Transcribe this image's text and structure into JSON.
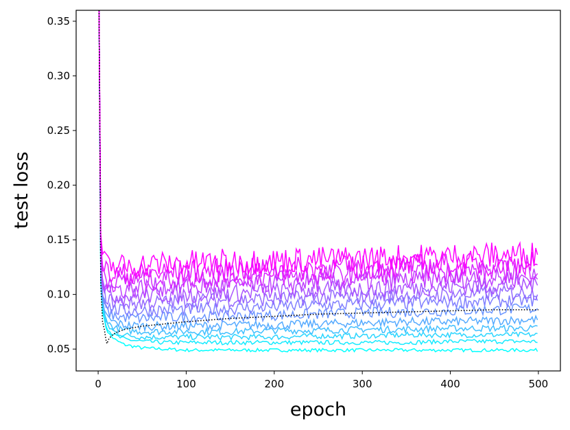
{
  "chart_data": {
    "type": "line",
    "title": "",
    "xlabel": "epoch",
    "ylabel": "test loss",
    "xlim": [
      -25,
      525
    ],
    "ylim": [
      0.03,
      0.36
    ],
    "xticks": [
      0,
      100,
      200,
      300,
      400,
      500
    ],
    "xtick_labels": [
      "0",
      "100",
      "200",
      "300",
      "400",
      "500"
    ],
    "yticks": [
      0.05,
      0.1,
      0.15,
      0.2,
      0.25,
      0.3,
      0.35
    ],
    "ytick_labels": [
      "0.05",
      "0.10",
      "0.15",
      "0.20",
      "0.25",
      "0.30",
      "0.35"
    ],
    "grid": false,
    "legend": "none",
    "colormap": "cool (cyan to magenta)",
    "x_points": [
      1,
      3,
      5,
      8,
      12,
      20,
      30,
      50,
      75,
      100,
      150,
      200,
      250,
      300,
      350,
      400,
      450,
      500
    ],
    "series": [
      {
        "color": "#00ffff",
        "values": [
          0.36,
          0.11,
          0.085,
          0.072,
          0.064,
          0.058,
          0.054,
          0.051,
          0.05,
          0.049,
          0.049,
          0.049,
          0.049,
          0.049,
          0.049,
          0.049,
          0.049,
          0.049
        ],
        "noise": 0.0015
      },
      {
        "color": "#15eaff",
        "values": [
          0.36,
          0.115,
          0.088,
          0.075,
          0.067,
          0.062,
          0.059,
          0.057,
          0.056,
          0.056,
          0.056,
          0.056,
          0.056,
          0.056,
          0.056,
          0.057,
          0.057,
          0.057
        ],
        "noise": 0.002
      },
      {
        "color": "#2ad5ff",
        "values": [
          0.36,
          0.118,
          0.09,
          0.078,
          0.07,
          0.065,
          0.063,
          0.061,
          0.061,
          0.061,
          0.061,
          0.061,
          0.062,
          0.062,
          0.063,
          0.063,
          0.063,
          0.063
        ],
        "noise": 0.0025
      },
      {
        "color": "#40bfff",
        "values": [
          0.36,
          0.12,
          0.092,
          0.08,
          0.073,
          0.069,
          0.067,
          0.066,
          0.066,
          0.066,
          0.066,
          0.067,
          0.067,
          0.068,
          0.068,
          0.069,
          0.069,
          0.069
        ],
        "noise": 0.003
      },
      {
        "color": "#55aaff",
        "values": [
          0.36,
          0.123,
          0.095,
          0.083,
          0.077,
          0.074,
          0.072,
          0.071,
          0.071,
          0.071,
          0.072,
          0.072,
          0.073,
          0.074,
          0.075,
          0.075,
          0.076,
          0.077
        ],
        "noise": 0.004
      },
      {
        "color": "#6a95ff",
        "values": [
          0.36,
          0.126,
          0.099,
          0.088,
          0.083,
          0.08,
          0.079,
          0.078,
          0.079,
          0.079,
          0.08,
          0.081,
          0.082,
          0.083,
          0.084,
          0.085,
          0.086,
          0.087
        ],
        "noise": 0.005
      },
      {
        "color": "#807fff",
        "values": [
          0.36,
          0.13,
          0.103,
          0.094,
          0.089,
          0.086,
          0.085,
          0.085,
          0.086,
          0.086,
          0.087,
          0.089,
          0.09,
          0.091,
          0.092,
          0.093,
          0.094,
          0.095
        ],
        "noise": 0.006
      },
      {
        "color": "#956aff",
        "values": [
          0.36,
          0.134,
          0.108,
          0.1,
          0.095,
          0.093,
          0.092,
          0.092,
          0.093,
          0.094,
          0.095,
          0.096,
          0.097,
          0.098,
          0.099,
          0.1,
          0.101,
          0.102
        ],
        "noise": 0.007
      },
      {
        "color": "#aa55ff",
        "values": [
          0.36,
          0.138,
          0.113,
          0.105,
          0.101,
          0.099,
          0.098,
          0.099,
          0.1,
          0.1,
          0.101,
          0.103,
          0.104,
          0.105,
          0.106,
          0.107,
          0.108,
          0.109
        ],
        "noise": 0.008
      },
      {
        "color": "#bf40ff",
        "values": [
          0.36,
          0.142,
          0.118,
          0.111,
          0.107,
          0.105,
          0.105,
          0.106,
          0.107,
          0.107,
          0.108,
          0.11,
          0.111,
          0.112,
          0.113,
          0.114,
          0.115,
          0.116
        ],
        "noise": 0.009
      },
      {
        "color": "#d52aff",
        "values": [
          0.36,
          0.146,
          0.123,
          0.117,
          0.113,
          0.112,
          0.112,
          0.113,
          0.114,
          0.115,
          0.116,
          0.117,
          0.118,
          0.119,
          0.12,
          0.121,
          0.122,
          0.123
        ],
        "noise": 0.01
      },
      {
        "color": "#ea15ff",
        "values": [
          0.36,
          0.15,
          0.128,
          0.122,
          0.119,
          0.118,
          0.118,
          0.119,
          0.12,
          0.121,
          0.122,
          0.123,
          0.124,
          0.125,
          0.126,
          0.127,
          0.128,
          0.129
        ],
        "noise": 0.011
      },
      {
        "color": "#ff00ff",
        "values": [
          0.36,
          0.155,
          0.133,
          0.128,
          0.126,
          0.126,
          0.126,
          0.127,
          0.128,
          0.129,
          0.13,
          0.131,
          0.132,
          0.133,
          0.134,
          0.135,
          0.136,
          0.137
        ],
        "noise": 0.012
      }
    ],
    "reference_series": {
      "style": "dotted",
      "color": "#000000",
      "x": [
        1,
        3,
        5,
        7,
        9,
        10,
        12,
        15,
        20,
        30,
        50,
        75,
        100,
        150,
        200,
        250,
        300,
        350,
        400,
        450,
        500
      ],
      "values": [
        0.36,
        0.11,
        0.075,
        0.068,
        0.058,
        0.055,
        0.059,
        0.062,
        0.065,
        0.068,
        0.071,
        0.073,
        0.075,
        0.078,
        0.08,
        0.082,
        0.083,
        0.084,
        0.085,
        0.086,
        0.086
      ]
    }
  }
}
